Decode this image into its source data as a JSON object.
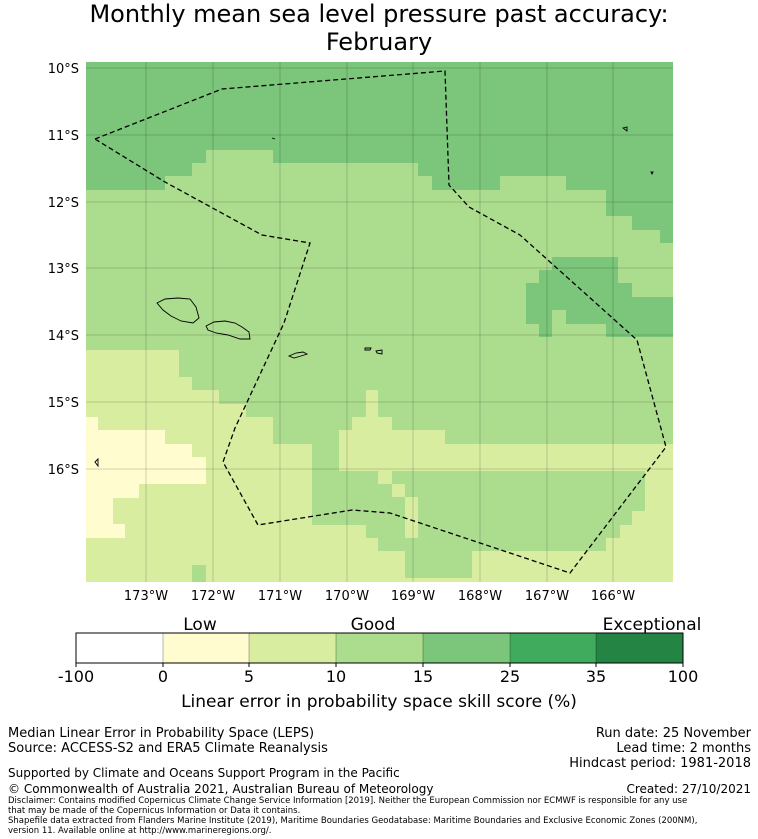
{
  "title": {
    "line1": "Monthly mean sea level pressure past accuracy:",
    "line2": "February"
  },
  "map": {
    "lat_labels": [
      "10°S",
      "11°S",
      "12°S",
      "13°S",
      "14°S",
      "15°S",
      "16°S"
    ],
    "lon_labels": [
      "173°W",
      "172°W",
      "171°W",
      "170°W",
      "169°W",
      "168°W",
      "167°W",
      "166°W"
    ],
    "skill_colors": {
      "very_low": "#fffcd0",
      "low": "#d9eda1",
      "good": "#acdc8e",
      "very_good": "#7bc67b",
      "exceptional": "#41ab5d",
      "top": "#238443"
    }
  },
  "colorbar": {
    "category_labels": [
      "Low",
      "Good",
      "Exceptional"
    ],
    "ticks": [
      "-100",
      "0",
      "5",
      "10",
      "15",
      "25",
      "35",
      "100"
    ],
    "colors": [
      "#ffffff",
      "#fffcd0",
      "#d9eda1",
      "#acdc8e",
      "#7bc67b",
      "#41ab5d",
      "#238443"
    ],
    "title": "Linear error in probability space skill score (%)"
  },
  "footer": {
    "method": "Median Linear Error in Probability Space (LEPS)",
    "source": "Source: ACCESS-S2 and ERA5 Climate Reanalysis",
    "run_date": "Run date: 25 November",
    "lead_time": "Lead time: 2 months",
    "hindcast": "Hindcast period: 1981-2018",
    "support": "Supported by Climate and Oceans Support Program in the Pacific",
    "copyright": "© Commonwealth of Australia 2021, Australian Bureau of Meteorology",
    "created": "Created: 27/10/2021",
    "disclaimer1": "Disclaimer: Contains modified Copernicus Climate Change Service Information [2019]. Neither the European Commission nor ECMWF is responsible for any use",
    "disclaimer2": "that may be made of the Copernicus Information or Data it contains.",
    "shapefile1": "Shapefile data extracted from Flanders Marine Institute (2019), Maritime Boundaries Geodatabase: Maritime Boundaries and Exclusive Economic Zones (200NM),",
    "shapefile2": "version 11. Available online at http://www.marineregions.org/."
  }
}
